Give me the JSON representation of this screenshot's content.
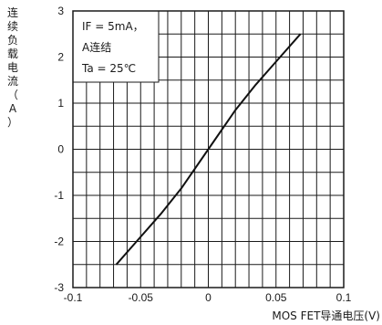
{
  "chart_data": {
    "type": "line",
    "title": "",
    "xlabel": "MOS FET导通电压(V)",
    "ylabel": "连续负载电流（A）",
    "xlim": [
      -0.1,
      0.1
    ],
    "ylim": [
      -3,
      3
    ],
    "x_ticks": [
      "-0.1",
      "-0.05",
      "0",
      "0.05",
      "0.1"
    ],
    "y_ticks": [
      "3",
      "2",
      "1",
      "0",
      "-1",
      "-2",
      "-3"
    ],
    "grid": true,
    "conditions": [
      "IF = 5mA，",
      "A连结",
      "Ta = 25℃"
    ],
    "series": [
      {
        "x": [
          -0.068,
          -0.05,
          -0.035,
          -0.02,
          0,
          0.02,
          0.035,
          0.05,
          0.068
        ],
        "y": [
          -2.5,
          -1.9,
          -1.4,
          -0.85,
          0,
          0.85,
          1.4,
          1.9,
          2.5
        ]
      }
    ]
  },
  "colors": {
    "line": "#111111",
    "grid": "#1a1a1a"
  }
}
